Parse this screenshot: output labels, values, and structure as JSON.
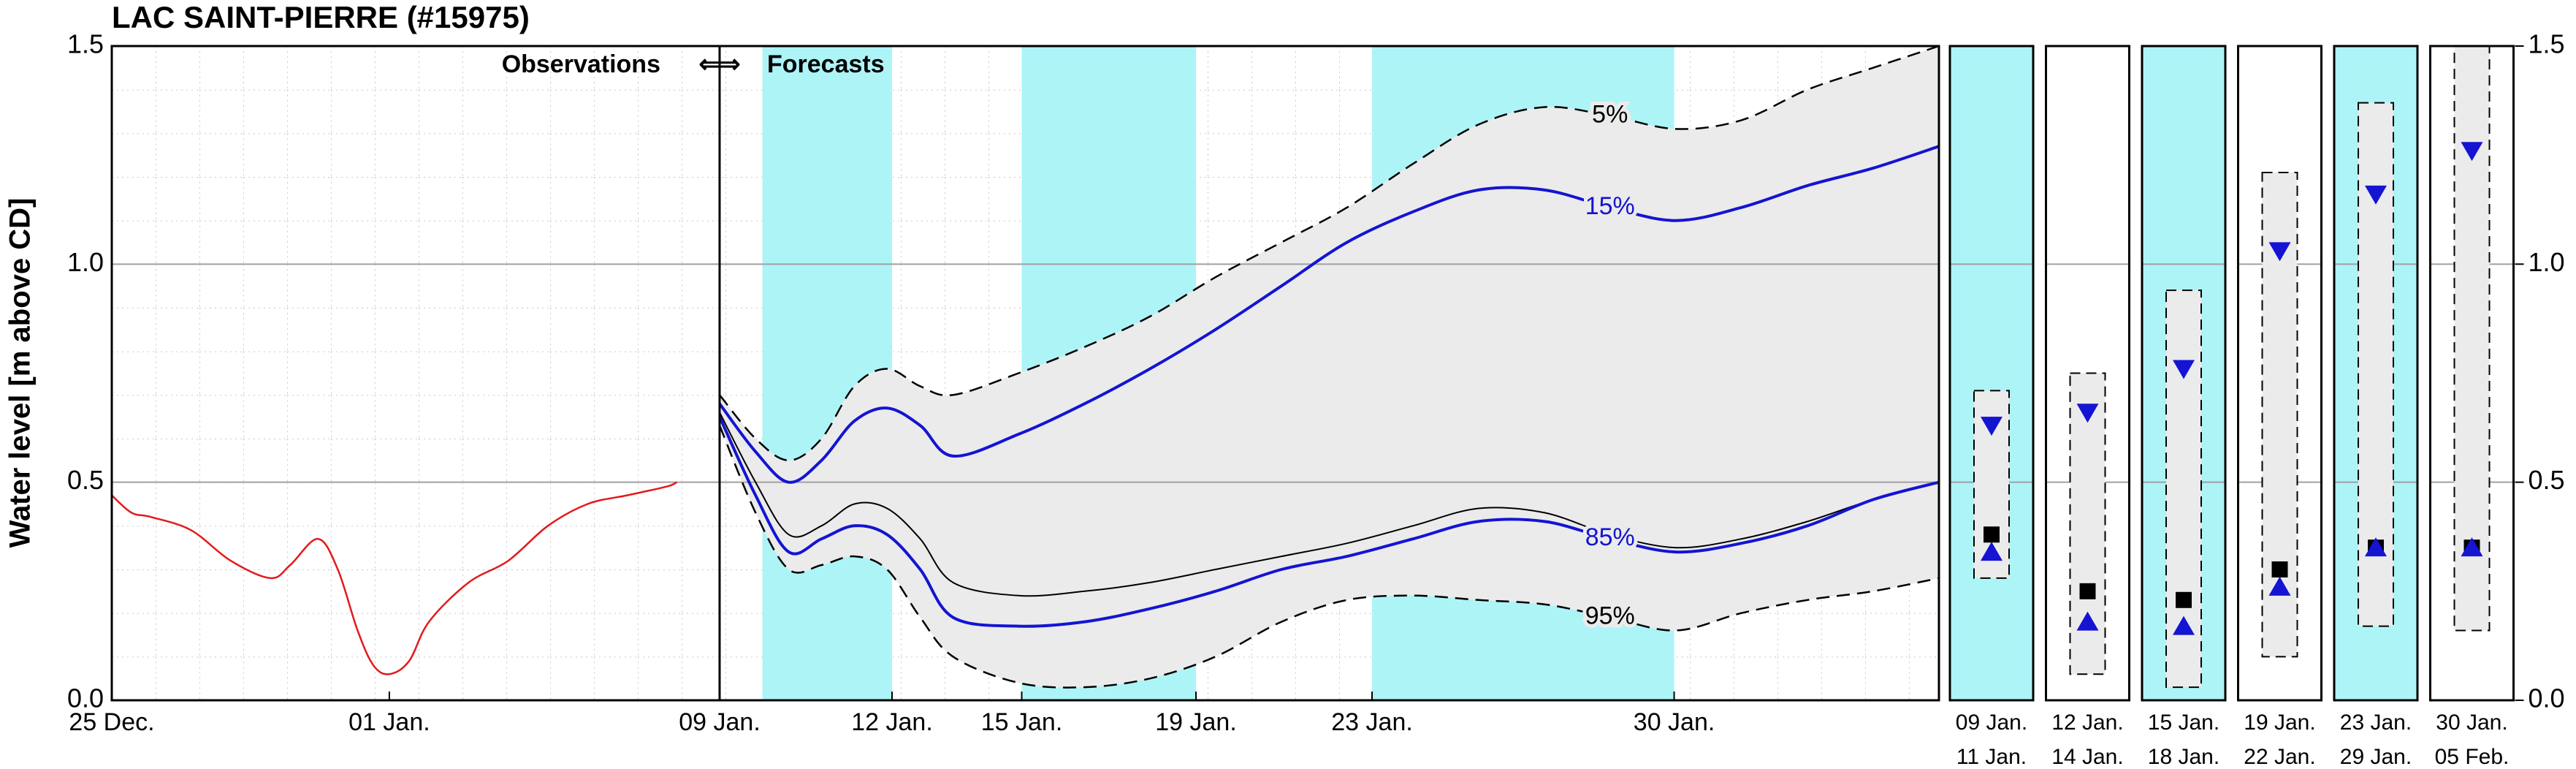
{
  "title": "LAC SAINT-PIERRE (#15975)",
  "chart_data": [
    {
      "type": "line",
      "ylabel": "Water level [m above CD]",
      "annotation": "Observations",
      "xlim": [
        0,
        15.33
      ],
      "ylim": [
        0,
        1.5
      ],
      "yticks": [
        {
          "value": 0,
          "label": "0.0"
        },
        0.5,
        {
          "value": 1,
          "label": "1.0"
        },
        1.5
      ],
      "xticks": [
        {
          "value": 0,
          "label": "25 Dec."
        },
        {
          "value": 7,
          "label": "01 Jan."
        }
      ],
      "grid": true,
      "x": [
        0,
        0.5,
        1,
        2,
        3,
        4,
        4.5,
        5.2,
        5.7,
        6.2,
        6.6,
        7,
        7.5,
        8,
        9,
        10,
        11,
        12,
        13,
        14,
        14.25
      ],
      "series": [
        {
          "color": "#e31a1c",
          "values": [
            0.47,
            0.43,
            0.42,
            0.39,
            0.32,
            0.28,
            0.31,
            0.37,
            0.3,
            0.16,
            0.08,
            0.06,
            0.09,
            0.18,
            0.27,
            0.32,
            0.4,
            0.45,
            0.47,
            0.49,
            0.5
          ]
        }
      ]
    },
    {
      "type": "fan",
      "annotations": [
        "⇐⇒",
        "Forecasts"
      ],
      "xlim": [
        0,
        26.8
      ],
      "ylim": [
        0,
        1.5
      ],
      "yticks": [
        {
          "value": 0,
          "label": "0.0"
        },
        0.5,
        {
          "value": 1,
          "label": "1.0"
        },
        1.5
      ],
      "xticks": [
        {
          "value": 0,
          "label": "09 Jan."
        },
        {
          "value": 3.79,
          "label": "12 Jan."
        },
        {
          "value": 6.64,
          "label": "15 Jan."
        },
        {
          "value": 10.47,
          "label": "19 Jan."
        },
        {
          "value": 14.34,
          "label": "23 Jan."
        },
        {
          "value": 20.98,
          "label": "30 Jan."
        }
      ],
      "grid": true,
      "shaded_periods": [
        [
          0.94,
          3.79
        ],
        [
          6.64,
          10.47
        ],
        [
          14.34,
          20.98
        ]
      ],
      "shade_color": "#adf4f7",
      "band_color": "#ebebeb",
      "x": [
        0,
        0.79,
        1.52,
        2.24,
        2.96,
        3.68,
        4.41,
        5.13,
        6.57,
        8.02,
        9.46,
        10.9,
        12.35,
        13.79,
        15.24,
        16.68,
        18.13,
        19.57,
        21.02,
        22.46,
        23.91,
        25.35,
        26.8
      ],
      "series": [
        {
          "name": "5%",
          "color": "#000000",
          "dashed": true,
          "values": [
            0.7,
            0.6,
            0.55,
            0.6,
            0.72,
            0.76,
            0.72,
            0.7,
            0.75,
            0.81,
            0.88,
            0.97,
            1.05,
            1.13,
            1.23,
            1.32,
            1.36,
            1.34,
            1.31,
            1.33,
            1.4,
            1.45,
            1.5
          ]
        },
        {
          "name": "15%",
          "color": "#1414d2",
          "dashed": false,
          "values": [
            0.68,
            0.57,
            0.5,
            0.55,
            0.64,
            0.67,
            0.63,
            0.56,
            0.61,
            0.68,
            0.76,
            0.85,
            0.95,
            1.05,
            1.12,
            1.17,
            1.17,
            1.13,
            1.1,
            1.13,
            1.18,
            1.22,
            1.27
          ]
        },
        {
          "color": "#000000",
          "dashed": false,
          "values": [
            0.66,
            0.5,
            0.38,
            0.4,
            0.45,
            0.44,
            0.37,
            0.27,
            0.24,
            0.25,
            0.27,
            0.3,
            0.33,
            0.36,
            0.4,
            0.44,
            0.43,
            0.38,
            0.35,
            0.37,
            0.41,
            0.46,
            0.5
          ]
        },
        {
          "name": "85%",
          "color": "#1414d2",
          "dashed": false,
          "values": [
            0.65,
            0.47,
            0.34,
            0.37,
            0.4,
            0.38,
            0.3,
            0.19,
            0.17,
            0.18,
            0.21,
            0.25,
            0.3,
            0.33,
            0.37,
            0.41,
            0.41,
            0.37,
            0.34,
            0.36,
            0.4,
            0.46,
            0.5
          ]
        },
        {
          "name": "95%",
          "color": "#000000",
          "dashed": true,
          "values": [
            0.63,
            0.43,
            0.3,
            0.31,
            0.33,
            0.3,
            0.19,
            0.1,
            0.04,
            0.03,
            0.05,
            0.1,
            0.18,
            0.23,
            0.24,
            0.23,
            0.22,
            0.19,
            0.16,
            0.2,
            0.23,
            0.25,
            0.28
          ]
        }
      ]
    },
    {
      "type": "ranges",
      "ylim": [
        0,
        1.5
      ],
      "yticks": [
        {
          "value": 0,
          "label": "0.0"
        },
        0.5,
        {
          "value": 1,
          "label": "1.0"
        },
        1.5
      ],
      "grid": true,
      "start_labels": [
        "09  Jan.",
        "12  Jan.",
        "15  Jan.",
        "19  Jan.",
        "23  Jan.",
        "30  Jan."
      ],
      "end_labels": [
        "11  Jan.",
        "14  Jan.",
        "18  Jan.",
        "22  Jan.",
        "29  Jan.",
        "05  Feb."
      ],
      "shaded": [
        true,
        false,
        true,
        false,
        true,
        false
      ],
      "shade_color": "#adf4f7",
      "band_color": "#ebebeb",
      "median_color": "#000000",
      "marker_color": "#1414d2",
      "low": [
        0.28,
        0.06,
        0.03,
        0.1,
        0.17,
        0.16
      ],
      "high": [
        0.71,
        0.75,
        0.94,
        1.21,
        1.37,
        1.5
      ],
      "median": [
        0.38,
        0.25,
        0.23,
        0.3,
        0.35,
        0.35
      ],
      "p85": [
        0.34,
        0.18,
        0.17,
        0.26,
        0.35,
        0.35
      ],
      "p15": [
        0.63,
        0.66,
        0.76,
        1.03,
        1.16,
        1.26
      ]
    }
  ]
}
